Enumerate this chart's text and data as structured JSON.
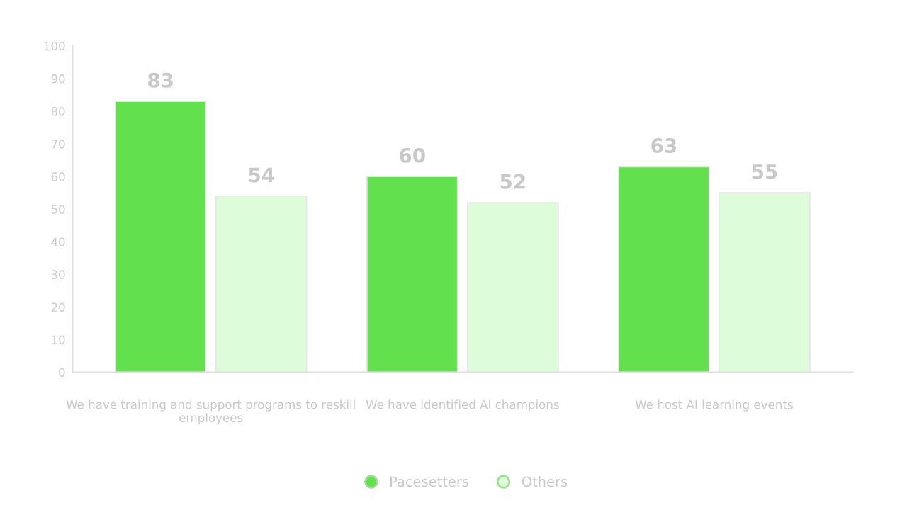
{
  "chart_data": {
    "type": "bar",
    "categories": [
      "We have training and support programs to reskill employees",
      "We have identified AI champions",
      "We host AI learning events"
    ],
    "series": [
      {
        "name": "Pacesetters",
        "color": "#63e04e",
        "values": [
          83,
          60,
          63
        ]
      },
      {
        "name": "Others",
        "color": "#ddfcd9",
        "values": [
          54,
          52,
          55
        ]
      }
    ],
    "ylim": [
      0,
      100
    ],
    "yticks": [
      0,
      10,
      20,
      30,
      40,
      50,
      60,
      70,
      80,
      90,
      100
    ],
    "data_labels": true,
    "legend": "bottom",
    "grid": false,
    "marker": "circle"
  }
}
